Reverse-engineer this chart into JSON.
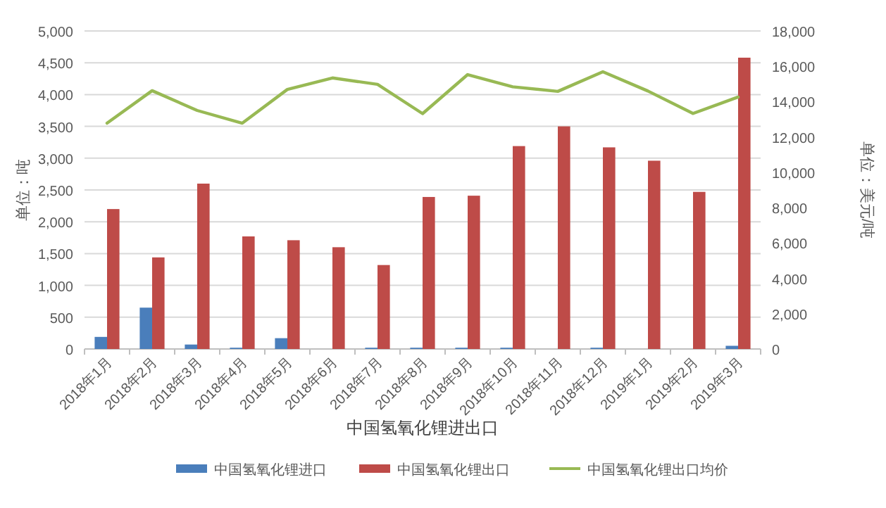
{
  "chart_data": {
    "type": "bar",
    "title": "中国氢氧化锂进出口",
    "ylabel": "单位：吨",
    "y2label": "单位：美元/吨",
    "categories": [
      "2018年1月",
      "2018年2月",
      "2018年3月",
      "2018年4月",
      "2018年5月",
      "2018年6月",
      "2018年7月",
      "2018年8月",
      "2018年9月",
      "2018年10月",
      "2018年11月",
      "2018年12月",
      "2019年1月",
      "2019年2月",
      "2019年3月"
    ],
    "series": [
      {
        "name": "中国氢氧化锂进口",
        "color": "#4a7ebb",
        "values": [
          190,
          650,
          70,
          20,
          170,
          0,
          20,
          20,
          20,
          20,
          0,
          20,
          0,
          0,
          50
        ]
      },
      {
        "name": "中国氢氧化锂出口",
        "color": "#be4b48",
        "values": [
          2200,
          1440,
          2600,
          1770,
          1710,
          1600,
          1320,
          2390,
          2410,
          3190,
          3500,
          3170,
          2960,
          2470,
          4580
        ]
      },
      {
        "name": "中国氢氧化锂出口均价",
        "type": "line",
        "axis": "y2",
        "color": "#98b954",
        "values": [
          12780,
          14620,
          13500,
          12780,
          14690,
          15340,
          14980,
          13320,
          15530,
          14840,
          14580,
          15690,
          14600,
          13330,
          14260
        ]
      }
    ],
    "ylim": [
      0,
      5000
    ],
    "yticks": [
      {
        "value": 0,
        "label": "0"
      },
      {
        "value": 500,
        "label": "500"
      },
      {
        "value": 1000,
        "label": "1,000"
      },
      {
        "value": 1500,
        "label": "1,500"
      },
      {
        "value": 2000,
        "label": "2,000"
      },
      {
        "value": 2500,
        "label": "2,500"
      },
      {
        "value": 3000,
        "label": "3,000"
      },
      {
        "value": 3500,
        "label": "3,500"
      },
      {
        "value": 4000,
        "label": "4,000"
      },
      {
        "value": 4500,
        "label": "4,500"
      },
      {
        "value": 5000,
        "label": "5,000"
      }
    ],
    "y2lim": [
      0,
      18000
    ],
    "y2ticks": [
      {
        "value": 0,
        "label": "0"
      },
      {
        "value": 2000,
        "label": "2,000"
      },
      {
        "value": 4000,
        "label": "4,000"
      },
      {
        "value": 6000,
        "label": "6,000"
      },
      {
        "value": 8000,
        "label": "8,000"
      },
      {
        "value": 10000,
        "label": "10,000"
      },
      {
        "value": 12000,
        "label": "12,000"
      },
      {
        "value": 14000,
        "label": "14,000"
      },
      {
        "value": 16000,
        "label": "16,000"
      },
      {
        "value": 18000,
        "label": "18,000"
      }
    ],
    "grid": "y",
    "legend": "bottom"
  }
}
